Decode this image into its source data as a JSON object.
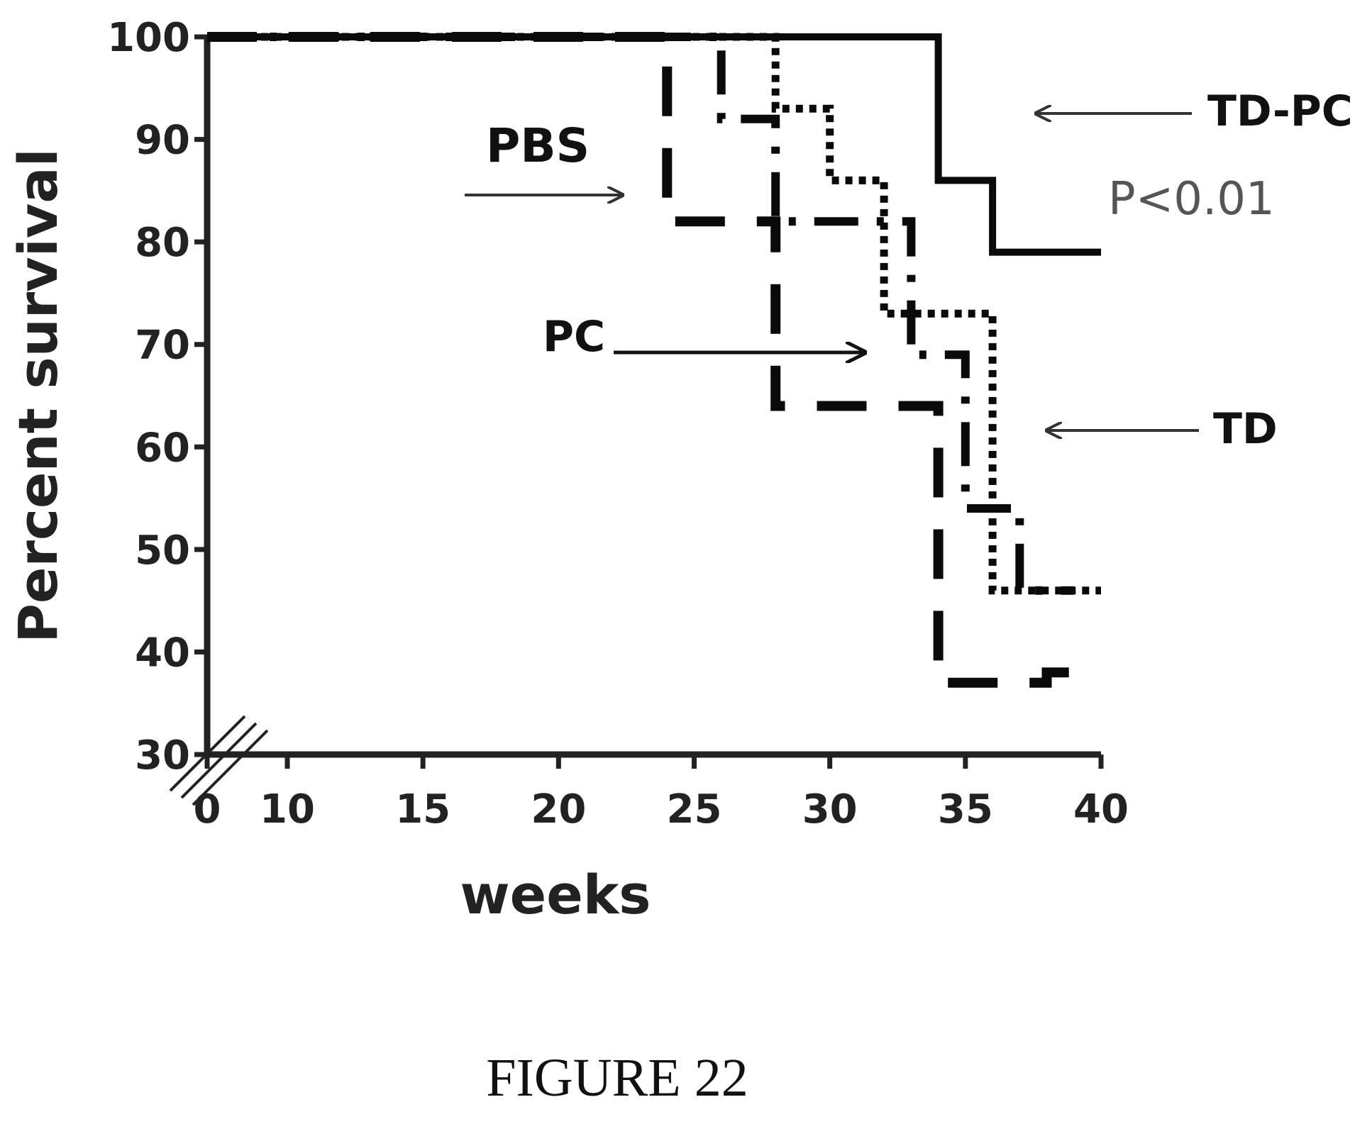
{
  "chart_data": {
    "type": "line",
    "xlabel": "weeks",
    "ylabel": "Percent survival",
    "xlim": [
      0,
      40
    ],
    "ylim": [
      30,
      100
    ],
    "axis_break": true,
    "x_ticks": [
      0,
      10,
      15,
      20,
      25,
      30,
      35,
      40
    ],
    "y_ticks": [
      30,
      40,
      50,
      60,
      70,
      80,
      90,
      100
    ],
    "grid": false,
    "series": [
      {
        "name": "TD-PC",
        "style": "solid",
        "x": [
          0,
          34,
          34,
          36,
          36,
          40
        ],
        "y": [
          100,
          100,
          86,
          86,
          79,
          79
        ]
      },
      {
        "name": "TD",
        "style": "dotted",
        "x": [
          0,
          28,
          28,
          30,
          30,
          32,
          32,
          36,
          36,
          40
        ],
        "y": [
          100,
          100,
          93,
          93,
          86,
          86,
          73,
          73,
          46,
          46
        ]
      },
      {
        "name": "PC",
        "style": "dash-dot",
        "x": [
          0,
          26,
          26,
          28,
          28,
          33,
          33,
          35,
          35,
          37,
          37,
          39
        ],
        "y": [
          100,
          100,
          92,
          92,
          82,
          82,
          69,
          69,
          54,
          54,
          46,
          46
        ]
      },
      {
        "name": "PBS",
        "style": "dashed",
        "x": [
          0,
          24,
          24,
          28,
          28,
          32,
          32,
          34,
          34,
          36,
          36,
          38,
          38,
          39
        ],
        "y": [
          100,
          100,
          82,
          82,
          64,
          64,
          64,
          64,
          37,
          37,
          37,
          37,
          38,
          38
        ]
      }
    ],
    "annotations": [
      {
        "text": "TD-PC",
        "points_to": "TD-PC"
      },
      {
        "text": "P<0.01"
      },
      {
        "text": "PBS",
        "points_to": "PBS"
      },
      {
        "text": "PC",
        "points_to": "PC"
      },
      {
        "text": "TD",
        "points_to": "TD"
      }
    ],
    "caption": "FIGURE 22"
  },
  "colors": {
    "axis": "#222222",
    "line": "#0a0a0a",
    "pvalue_text": "#555555"
  }
}
